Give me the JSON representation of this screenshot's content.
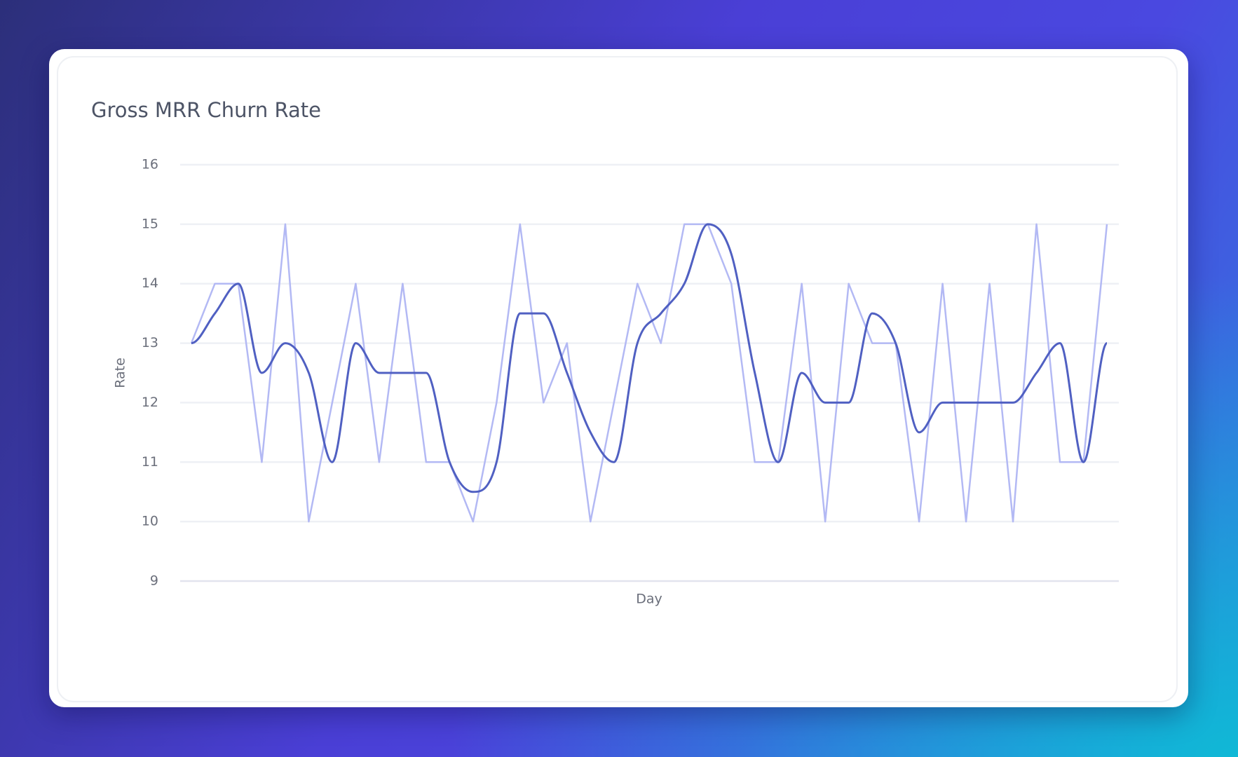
{
  "chart_data": {
    "type": "line",
    "title": "Gross MRR Churn Rate",
    "x_label": "Day",
    "y_label": "Rate",
    "ylim": [
      9,
      16
    ],
    "yticks": [
      9,
      10,
      11,
      12,
      13,
      14,
      15,
      16
    ],
    "grid": true,
    "series": [
      {
        "color": "#b3b9f4",
        "smooth": false,
        "values": [
          13,
          14,
          14,
          11,
          15,
          10,
          12,
          14,
          11,
          14,
          11,
          11,
          10,
          12,
          15,
          12,
          13,
          10,
          12,
          14,
          13,
          15,
          15,
          14,
          11,
          11,
          14,
          10,
          14,
          13,
          13,
          10,
          14,
          10,
          14,
          10,
          15,
          11,
          11,
          15
        ]
      },
      {
        "color": "#5060c2",
        "smooth": true,
        "values": [
          13,
          13.5,
          14,
          12.5,
          13,
          12.5,
          11,
          13,
          12.5,
          12.5,
          12.5,
          11,
          10.5,
          11,
          13.5,
          13.5,
          12.5,
          11.5,
          11,
          13,
          13.5,
          14,
          15,
          14.5,
          12.5,
          11,
          12.5,
          12,
          12,
          13.5,
          13,
          11.5,
          12,
          12,
          12,
          12,
          12.5,
          13,
          11,
          13
        ]
      }
    ]
  }
}
